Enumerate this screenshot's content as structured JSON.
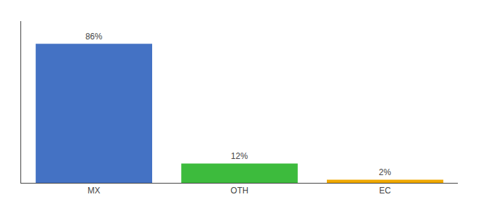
{
  "chart_data": {
    "type": "bar",
    "categories": [
      "MX",
      "OTH",
      "EC"
    ],
    "values": [
      86,
      12,
      2
    ],
    "value_labels": [
      "86%",
      "12%",
      "2%"
    ],
    "colors": [
      "#4472c4",
      "#3dbb3d",
      "#f0a800"
    ],
    "ylim": [
      0,
      100
    ],
    "grid": false,
    "data_labels": true,
    "tick_labels": "x"
  }
}
